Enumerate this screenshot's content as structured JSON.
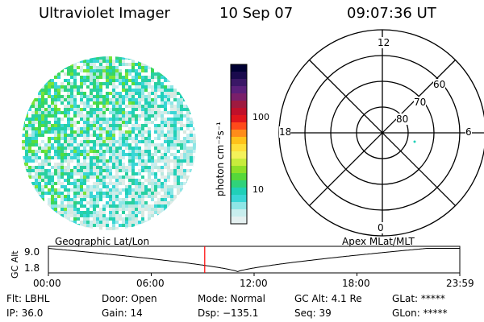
{
  "header": {
    "title": "Ultraviolet Imager",
    "date": "10 Sep 07",
    "time": "09:07:36 UT"
  },
  "colorbar": {
    "unit": "photon cm⁻²s⁻¹",
    "ticks": [
      "100",
      "10"
    ],
    "colors": [
      "#000033",
      "#1a0a4d",
      "#3a1766",
      "#5a1f7a",
      "#7a1f6a",
      "#9e1a40",
      "#c0102a",
      "#e0161c",
      "#ff4a1a",
      "#ff8c1a",
      "#ffc21a",
      "#ffe03a",
      "#f4f25a",
      "#c8ec3c",
      "#8ee028",
      "#56d83a",
      "#30d27a",
      "#20d0b8",
      "#3ad6d6",
      "#8ee6e6",
      "#c8eeee",
      "#e4f0f0"
    ]
  },
  "polar_plot": {
    "top_label": "12",
    "bottom_label": "0",
    "left_label": "18",
    "right_label": "6",
    "lat_labels": [
      "60",
      "70",
      "80"
    ]
  },
  "timeline": {
    "left_label": "Geographic Lat/Lon",
    "right_label": "Apex MLat/MLT",
    "axis_title": "GC Alt",
    "y_ticks": [
      "9.0",
      "1.8"
    ],
    "x_ticks": [
      "00:00",
      "06:00",
      "12:00",
      "18:00",
      "23:59"
    ],
    "current_time_fraction": 0.38
  },
  "status": {
    "flt": "Flt: LBHL",
    "ip": "IP: 36.0",
    "door": "Door: Open",
    "gain": "Gain: 14",
    "mode": "Mode: Normal",
    "dsp": "Dsp: −135.1",
    "gcalt": "GC Alt: 4.1 Re",
    "seq": "Seq: 39",
    "glat": "GLat: *****",
    "glon": "GLon: *****"
  },
  "colors": {
    "accent_marker": "#ff0000"
  }
}
